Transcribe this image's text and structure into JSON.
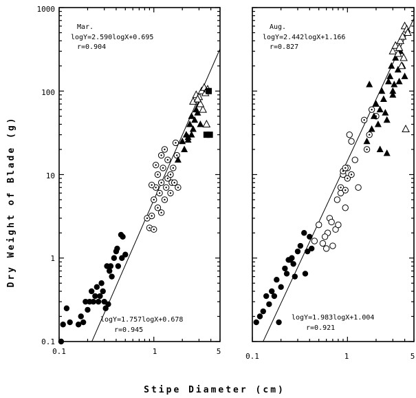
{
  "chart_data": [
    {
      "type": "scatter",
      "panel": "Mar.",
      "xscale": "log",
      "yscale": "log",
      "xlim": [
        0.1,
        5
      ],
      "ylim": [
        0.1,
        1000
      ],
      "annotations": {
        "month": "Mar.",
        "upper_eq": "logY=2.590logX+0.695",
        "upper_r": "r=0.904",
        "lower_eq": "logY=1.757logX+0.678",
        "lower_r": "r=0.945"
      },
      "fit_line": {
        "slope": 2.59,
        "intercept": 0.695,
        "x_range": [
          0.1,
          5
        ]
      },
      "series": [
        {
          "marker": "filled-circle",
          "points": [
            [
              0.105,
              0.1
            ],
            [
              0.11,
              0.16
            ],
            [
              0.12,
              0.25
            ],
            [
              0.13,
              0.17
            ],
            [
              0.16,
              0.16
            ],
            [
              0.18,
              0.17
            ],
            [
              0.17,
              0.2
            ],
            [
              0.19,
              0.3
            ],
            [
              0.2,
              0.24
            ],
            [
              0.21,
              0.3
            ],
            [
              0.22,
              0.4
            ],
            [
              0.23,
              0.3
            ],
            [
              0.24,
              0.35
            ],
            [
              0.25,
              0.45
            ],
            [
              0.26,
              0.3
            ],
            [
              0.27,
              0.35
            ],
            [
              0.28,
              0.5
            ],
            [
              0.29,
              0.4
            ],
            [
              0.3,
              0.3
            ],
            [
              0.31,
              0.25
            ],
            [
              0.32,
              0.8
            ],
            [
              0.33,
              0.28
            ],
            [
              0.35,
              0.8
            ],
            [
              0.36,
              0.6
            ],
            [
              0.38,
              1.0
            ],
            [
              0.4,
              1.2
            ],
            [
              0.42,
              0.8
            ],
            [
              0.45,
              1.9
            ],
            [
              0.47,
              1.8
            ],
            [
              0.5,
              1.1
            ],
            [
              0.46,
              1.0
            ],
            [
              0.41,
              1.3
            ],
            [
              0.34,
              0.7
            ]
          ]
        },
        {
          "marker": "open-circle-dot",
          "points": [
            [
              0.85,
              3.0
            ],
            [
              0.9,
              2.3
            ],
            [
              0.95,
              3.2
            ],
            [
              1.0,
              2.2
            ],
            [
              1.0,
              5.0
            ],
            [
              1.05,
              7.0
            ],
            [
              1.1,
              4.0
            ],
            [
              1.1,
              10.0
            ],
            [
              1.15,
              6.0
            ],
            [
              1.2,
              3.5
            ],
            [
              1.2,
              8.0
            ],
            [
              1.25,
              12.0
            ],
            [
              1.3,
              5.0
            ],
            [
              1.35,
              7.0
            ],
            [
              1.4,
              9.0
            ],
            [
              1.4,
              15.0
            ],
            [
              1.5,
              6.0
            ],
            [
              1.5,
              10.0
            ],
            [
              1.55,
              8.0
            ],
            [
              1.6,
              12.0
            ],
            [
              1.65,
              8.0
            ],
            [
              1.7,
              24.0
            ],
            [
              1.75,
              17.0
            ],
            [
              1.8,
              7.0
            ],
            [
              1.2,
              17.0
            ],
            [
              1.3,
              20.0
            ],
            [
              0.95,
              7.5
            ],
            [
              1.05,
              13.0
            ]
          ]
        },
        {
          "marker": "filled-triangle",
          "points": [
            [
              1.8,
              15.0
            ],
            [
              2.0,
              25.0
            ],
            [
              2.1,
              20.0
            ],
            [
              2.2,
              30.0
            ],
            [
              2.3,
              28.0
            ],
            [
              2.4,
              40.0
            ],
            [
              2.5,
              50.0
            ],
            [
              2.6,
              35.0
            ],
            [
              2.7,
              45.0
            ],
            [
              2.8,
              60.0
            ],
            [
              2.9,
              55.0
            ],
            [
              3.0,
              70.0
            ],
            [
              3.1,
              40.0
            ],
            [
              2.5,
              30.0
            ],
            [
              2.3,
              26.0
            ]
          ]
        },
        {
          "marker": "open-triangle",
          "points": [
            [
              2.6,
              75.0
            ],
            [
              2.8,
              90.0
            ],
            [
              3.0,
              85.0
            ],
            [
              3.2,
              100.0
            ],
            [
              3.4,
              110.0
            ],
            [
              3.5,
              95.0
            ],
            [
              3.3,
              60.0
            ],
            [
              3.6,
              40.0
            ],
            [
              3.1,
              70.0
            ],
            [
              2.9,
              80.0
            ],
            [
              3.7,
              105.0
            ]
          ]
        },
        {
          "marker": "filled-square",
          "points": [
            [
              3.8,
              100.0
            ],
            [
              3.6,
              30.0
            ],
            [
              3.9,
              30.0
            ]
          ]
        }
      ]
    },
    {
      "type": "scatter",
      "panel": "Aug.",
      "xscale": "log",
      "yscale": "log",
      "xlim": [
        0.1,
        5
      ],
      "ylim": [
        0.1,
        1000
      ],
      "annotations": {
        "month": "Aug.",
        "upper_eq": "logY=2.442logX+1.166",
        "upper_r": "r=0.827",
        "lower_eq": "logY=1.983logX+1.004",
        "lower_r": "r=0.921"
      },
      "fit_line": {
        "slope": 2.442,
        "intercept": 1.166,
        "x_range": [
          0.1,
          5
        ]
      },
      "series": [
        {
          "marker": "filled-circle",
          "points": [
            [
              0.11,
              0.17
            ],
            [
              0.12,
              0.2
            ],
            [
              0.13,
              0.23
            ],
            [
              0.14,
              0.35
            ],
            [
              0.15,
              0.28
            ],
            [
              0.16,
              0.4
            ],
            [
              0.17,
              0.35
            ],
            [
              0.18,
              0.55
            ],
            [
              0.19,
              0.17
            ],
            [
              0.2,
              0.45
            ],
            [
              0.22,
              0.75
            ],
            [
              0.23,
              0.65
            ],
            [
              0.24,
              0.95
            ],
            [
              0.25,
              0.95
            ],
            [
              0.26,
              1.0
            ],
            [
              0.27,
              0.85
            ],
            [
              0.28,
              0.6
            ],
            [
              0.3,
              1.2
            ],
            [
              0.32,
              1.4
            ],
            [
              0.35,
              2.0
            ],
            [
              0.36,
              0.65
            ],
            [
              0.38,
              1.2
            ],
            [
              0.4,
              1.8
            ],
            [
              0.42,
              1.3
            ]
          ]
        },
        {
          "marker": "open-circle",
          "points": [
            [
              0.45,
              1.6
            ],
            [
              0.5,
              2.5
            ],
            [
              0.55,
              1.5
            ],
            [
              0.6,
              1.3
            ],
            [
              0.62,
              2.0
            ],
            [
              0.65,
              3.0
            ],
            [
              0.7,
              1.4
            ],
            [
              0.75,
              2.2
            ],
            [
              0.78,
              5.0
            ],
            [
              0.8,
              2.5
            ],
            [
              0.85,
              6.0
            ],
            [
              0.9,
              10.0
            ],
            [
              0.95,
              4.0
            ],
            [
              1.0,
              12.0
            ],
            [
              1.05,
              30.0
            ],
            [
              1.1,
              25.0
            ],
            [
              1.2,
              15.0
            ],
            [
              1.3,
              7.0
            ],
            [
              0.58,
              1.8
            ],
            [
              0.68,
              2.7
            ]
          ]
        },
        {
          "marker": "open-circle-dot",
          "points": [
            [
              0.85,
              7.0
            ],
            [
              0.9,
              11.0
            ],
            [
              0.95,
              12.0
            ],
            [
              1.0,
              9.0
            ],
            [
              1.5,
              45.0
            ],
            [
              1.6,
              20.0
            ],
            [
              1.7,
              30.0
            ],
            [
              1.8,
              60.0
            ],
            [
              2.0,
              50.0
            ],
            [
              1.1,
              10.0
            ],
            [
              0.95,
              6.5
            ]
          ]
        },
        {
          "marker": "filled-triangle",
          "points": [
            [
              1.6,
              25.0
            ],
            [
              1.7,
              120.0
            ],
            [
              1.8,
              35.0
            ],
            [
              1.9,
              50.0
            ],
            [
              2.0,
              70.0
            ],
            [
              2.1,
              40.0
            ],
            [
              2.2,
              60.0
            ],
            [
              2.3,
              100.0
            ],
            [
              2.4,
              80.0
            ],
            [
              2.5,
              55.0
            ],
            [
              2.6,
              45.0
            ],
            [
              2.7,
              130.0
            ],
            [
              2.8,
              150.0
            ],
            [
              2.9,
              200.0
            ],
            [
              3.0,
              100.0
            ],
            [
              3.1,
              120.0
            ],
            [
              3.2,
              250.0
            ],
            [
              3.4,
              180.0
            ],
            [
              3.6,
              300.0
            ],
            [
              3.8,
              200.0
            ],
            [
              4.0,
              150.0
            ],
            [
              2.2,
              20.0
            ],
            [
              2.6,
              18.0
            ],
            [
              3.0,
              90.0
            ],
            [
              3.5,
              130.0
            ]
          ]
        },
        {
          "marker": "open-triangle",
          "points": [
            [
              3.0,
              300.0
            ],
            [
              3.2,
              350.0
            ],
            [
              3.4,
              280.0
            ],
            [
              3.6,
              400.0
            ],
            [
              3.8,
              450.0
            ],
            [
              4.0,
              600.0
            ],
            [
              4.2,
              550.0
            ],
            [
              3.9,
              250.0
            ],
            [
              3.7,
              200.0
            ],
            [
              4.1,
              35.0
            ],
            [
              3.5,
              330.0
            ],
            [
              4.3,
              500.0
            ]
          ]
        }
      ]
    }
  ],
  "y_ticks": [
    "0.1",
    "1",
    "10",
    "100",
    "1000"
  ],
  "x_ticks": [
    "0.1",
    "1",
    "5"
  ],
  "ylabel": "Dry Weight of Blade (g)",
  "xlabel": "Stipe Diameter (cm)"
}
